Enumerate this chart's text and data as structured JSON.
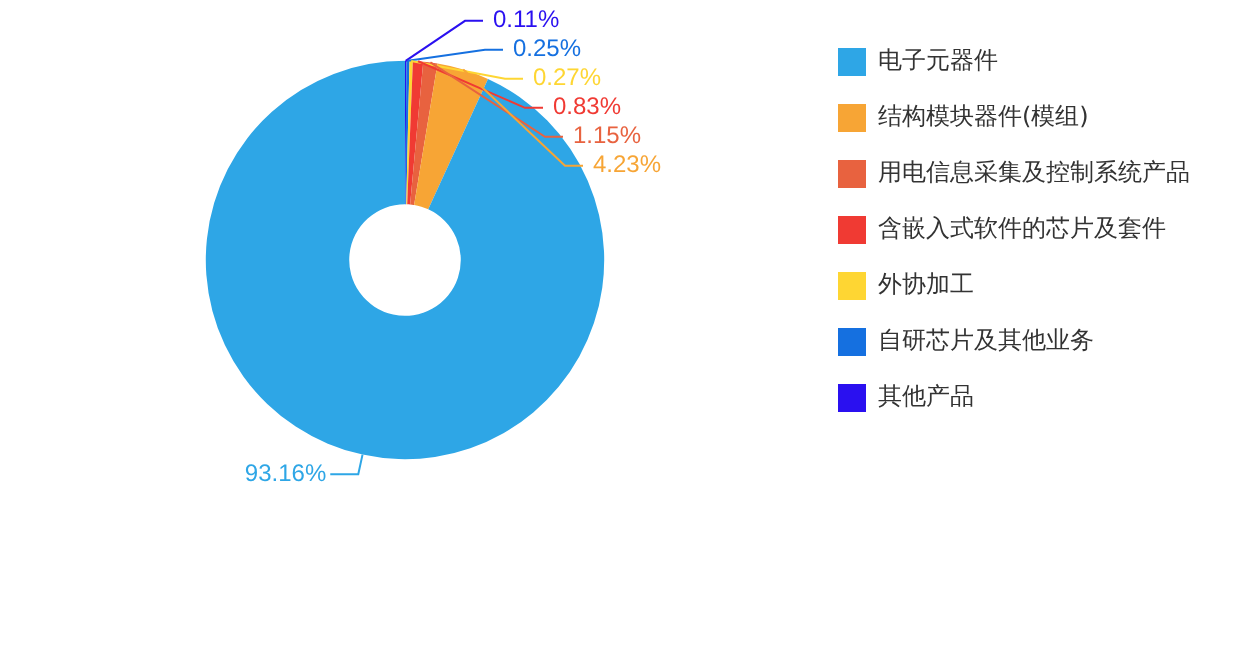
{
  "chart_data": {
    "type": "donut",
    "categories": [
      "其他产品",
      "自研芯片及其他业务",
      "外协加工",
      "含嵌入式软件的芯片及套件",
      "用电信息采集及控制系统产品",
      "结构模块器件(模组)",
      "电子元器件"
    ],
    "values": [
      0.11,
      0.25,
      0.27,
      0.83,
      1.15,
      4.23,
      93.16
    ],
    "value_labels": [
      "0.11%",
      "0.25%",
      "0.27%",
      "0.83%",
      "1.15%",
      "4.23%",
      "93.16%"
    ],
    "colors": [
      "#2a10f0",
      "#1570e0",
      "#fed633",
      "#f03a33",
      "#e8623f",
      "#f7a535",
      "#2ea6e6"
    ],
    "legend": "top right"
  }
}
